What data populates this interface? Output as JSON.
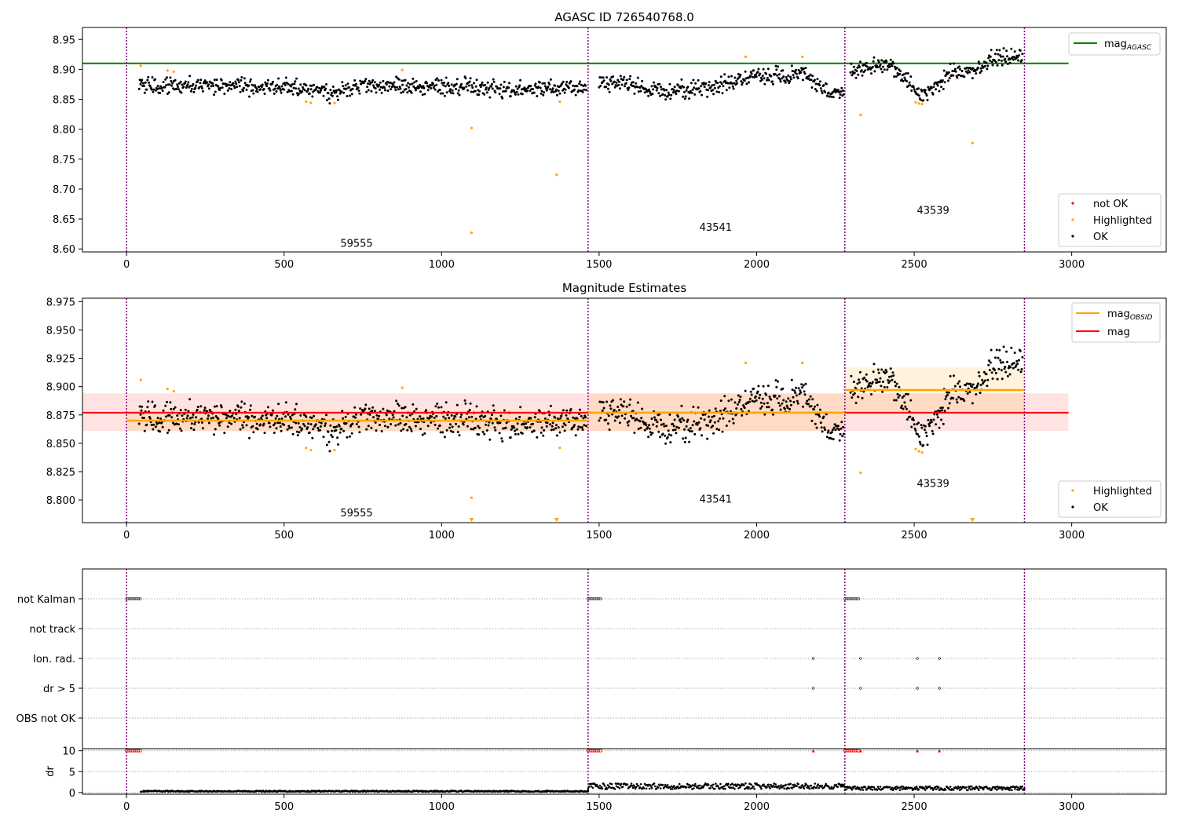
{
  "chart_data": [
    {
      "type": "scatter",
      "title": "AGASC ID 726540768.0",
      "xlim": [
        -140,
        3300
      ],
      "ylim": [
        8.595,
        8.97
      ],
      "xticks": [
        "0",
        "500",
        "1000",
        "1500",
        "2000",
        "2500",
        "3000"
      ],
      "yticks": [
        "8.60",
        "8.65",
        "8.70",
        "8.75",
        "8.80",
        "8.85",
        "8.90",
        "8.95"
      ],
      "obs_boundaries": [
        0,
        1465,
        2280,
        2850
      ],
      "obsid_labels": [
        {
          "text": "59555",
          "x": 730,
          "y": 8.61
        },
        {
          "text": "43541",
          "x": 1870,
          "y": 8.637
        },
        {
          "text": "43539",
          "x": 2560,
          "y": 8.665
        }
      ],
      "mag_agasc": {
        "name": "mag_AGASC",
        "value": 8.91,
        "x": [
          -140,
          2990
        ],
        "color": "#008000"
      },
      "series_legend": [
        {
          "name": "not OK",
          "color": "#ff0000"
        },
        {
          "name": "Highlighted",
          "color": "#ffa500"
        },
        {
          "name": "OK",
          "color": "#000000"
        }
      ],
      "highlighted": [
        [
          45,
          8.906
        ],
        [
          130,
          8.898
        ],
        [
          150,
          8.896
        ],
        [
          570,
          8.846
        ],
        [
          585,
          8.844
        ],
        [
          660,
          8.844
        ],
        [
          875,
          8.899
        ],
        [
          1095,
          8.802
        ],
        [
          1095,
          8.627
        ],
        [
          1365,
          8.724
        ],
        [
          1375,
          8.846
        ],
        [
          1965,
          8.921
        ],
        [
          2145,
          8.921
        ],
        [
          2330,
          8.824
        ],
        [
          2505,
          8.845
        ],
        [
          2515,
          8.843
        ],
        [
          2525,
          8.842
        ],
        [
          2685,
          8.777
        ]
      ],
      "ok_trend": [
        [
          40,
          8.87
        ],
        [
          200,
          8.875
        ],
        [
          400,
          8.871
        ],
        [
          550,
          8.868
        ],
        [
          650,
          8.861
        ],
        [
          750,
          8.874
        ],
        [
          900,
          8.872
        ],
        [
          1100,
          8.872
        ],
        [
          1200,
          8.866
        ],
        [
          1300,
          8.87
        ],
        [
          1460,
          8.868
        ],
        [
          1500,
          8.879
        ],
        [
          1600,
          8.875
        ],
        [
          1700,
          8.862
        ],
        [
          1800,
          8.866
        ],
        [
          1900,
          8.874
        ],
        [
          1960,
          8.886
        ],
        [
          2000,
          8.891
        ],
        [
          2100,
          8.889
        ],
        [
          2150,
          8.896
        ],
        [
          2230,
          8.858
        ],
        [
          2275,
          8.865
        ],
        [
          2300,
          8.896
        ],
        [
          2400,
          8.908
        ],
        [
          2450,
          8.9
        ],
        [
          2520,
          8.855
        ],
        [
          2560,
          8.87
        ],
        [
          2620,
          8.893
        ],
        [
          2700,
          8.902
        ],
        [
          2760,
          8.922
        ],
        [
          2845,
          8.918
        ]
      ],
      "ok_spread": 0.009
    },
    {
      "type": "scatter",
      "title": "Magnitude Estimates",
      "xlim": [
        -140,
        3300
      ],
      "ylim": [
        8.78,
        8.978
      ],
      "xticks": [
        "0",
        "500",
        "1000",
        "1500",
        "2000",
        "2500",
        "3000"
      ],
      "yticks": [
        "8.800",
        "8.825",
        "8.850",
        "8.875",
        "8.900",
        "8.925",
        "8.950",
        "8.975"
      ],
      "obs_boundaries": [
        0,
        1465,
        2280,
        2850
      ],
      "obsid_labels": [
        {
          "text": "59555",
          "x": 730,
          "y": 8.789
        },
        {
          "text": "43541",
          "x": 1870,
          "y": 8.801
        },
        {
          "text": "43539",
          "x": 2560,
          "y": 8.815
        }
      ],
      "mag": {
        "name": "mag",
        "value": 8.877,
        "band": [
          8.861,
          8.894
        ],
        "x": [
          -140,
          2990
        ],
        "color": "#ff0000"
      },
      "mag_obsid": [
        {
          "x": [
            0,
            1465
          ],
          "value": 8.87,
          "band": [
            8.861,
            8.879
          ]
        },
        {
          "x": [
            1465,
            2280
          ],
          "value": 8.877,
          "band": [
            8.861,
            8.894
          ]
        },
        {
          "x": [
            2280,
            2850
          ],
          "value": 8.897,
          "band": [
            8.878,
            8.917
          ]
        }
      ],
      "mag_obsid_name": "mag_OBSID",
      "series_legend": [
        {
          "name": "Highlighted",
          "color": "#ffa500"
        },
        {
          "name": "OK",
          "color": "#000000"
        }
      ],
      "highlighted": [
        [
          45,
          8.906
        ],
        [
          130,
          8.898
        ],
        [
          150,
          8.896
        ],
        [
          570,
          8.846
        ],
        [
          585,
          8.844
        ],
        [
          660,
          8.844
        ],
        [
          875,
          8.899
        ],
        [
          1095,
          8.802
        ],
        [
          1375,
          8.846
        ],
        [
          1965,
          8.921
        ],
        [
          2145,
          8.921
        ],
        [
          2330,
          8.824
        ],
        [
          2505,
          8.845
        ],
        [
          2515,
          8.843
        ],
        [
          2525,
          8.842
        ]
      ],
      "out_of_range_markers": [
        1095,
        1365,
        2685
      ]
    },
    {
      "type": "scatter",
      "title": "",
      "xlim": [
        -140,
        3300
      ],
      "categories": [
        "not Kalman",
        "not track",
        "Ion. rad.",
        "dr > 5",
        "OBS not OK"
      ],
      "not_kalman_ranges": [
        [
          0,
          45
        ],
        [
          1465,
          1505
        ],
        [
          2280,
          2325
        ]
      ],
      "ion_rad_x": [
        2180,
        2330,
        2510,
        2580
      ],
      "dr_gt_5_x": [
        2180,
        2330,
        2510,
        2580
      ]
    },
    {
      "type": "scatter",
      "title": "",
      "ylabel": "dr",
      "xlim": [
        -140,
        3300
      ],
      "ylim": [
        -0.4,
        10.5
      ],
      "xticks": [
        "0",
        "500",
        "1000",
        "1500",
        "2000",
        "2500",
        "3000"
      ],
      "yticks": [
        "0",
        "5",
        "10"
      ],
      "clipped_value": 10,
      "clipped_ranges": [
        [
          0,
          45
        ],
        [
          1465,
          1505
        ],
        [
          2280,
          2325
        ]
      ],
      "clipped_points": [
        2180,
        2330,
        2510,
        2580
      ],
      "dr_levels": [
        {
          "x": [
            45,
            1465
          ],
          "value": 0.3
        },
        {
          "x": [
            1465,
            2280
          ],
          "value": 1.5
        },
        {
          "x": [
            2280,
            2850
          ],
          "value": 1.0
        }
      ]
    }
  ]
}
